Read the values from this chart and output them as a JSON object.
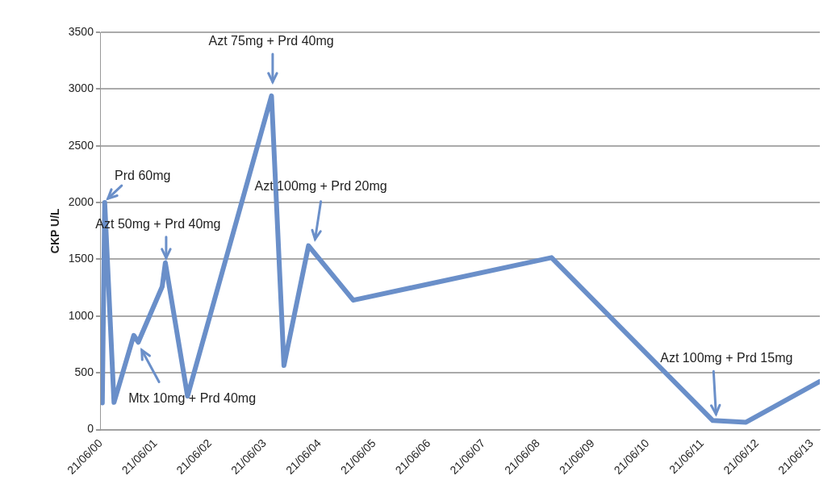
{
  "chart_data": {
    "type": "line",
    "ylabel": "CKP U/L",
    "x": [
      "2000-07-01",
      "2000-07-17",
      "2000-09-17",
      "2001-01-27",
      "2001-02-26",
      "2001-08-05",
      "2001-08-26",
      "2002-01-21",
      "2003-08-05",
      "2003-10-27",
      "2004-04-08",
      "2005-02-01",
      "2008-09-17",
      "2011-08-30",
      "2012-04-08",
      "2013-08-14"
    ],
    "series": [
      {
        "color": "#6a8fc9",
        "values": [
          235,
          2000,
          240,
          830,
          770,
          1260,
          1470,
          295,
          2940,
          565,
          1620,
          1140,
          1515,
          80,
          65,
          425
        ]
      }
    ],
    "xlim": [
      "2000-06-21",
      "2013-08-14"
    ],
    "xticks": [
      {
        "value": "2000-06-21",
        "label": "21/06/00"
      },
      {
        "value": "2001-06-21",
        "label": "21/06/01"
      },
      {
        "value": "2002-06-21",
        "label": "21/06/02"
      },
      {
        "value": "2003-06-21",
        "label": "21/06/03"
      },
      {
        "value": "2004-06-21",
        "label": "21/06/04"
      },
      {
        "value": "2005-06-21",
        "label": "21/06/05"
      },
      {
        "value": "2006-06-21",
        "label": "21/06/06"
      },
      {
        "value": "2007-06-21",
        "label": "21/06/07"
      },
      {
        "value": "2008-06-21",
        "label": "21/06/08"
      },
      {
        "value": "2009-06-21",
        "label": "21/06/09"
      },
      {
        "value": "2010-06-21",
        "label": "21/06/10"
      },
      {
        "value": "2011-06-21",
        "label": "21/06/11"
      },
      {
        "value": "2012-06-21",
        "label": "21/06/12"
      },
      {
        "value": "2013-06-21",
        "label": "21/06/13"
      }
    ],
    "ylim": [
      0,
      3500
    ],
    "yticks": [
      0,
      500,
      1000,
      1500,
      2000,
      2500,
      3000,
      3500
    ],
    "grid": "y",
    "legend": false,
    "marker": "none",
    "line_style": "solid",
    "annotations": [
      {
        "text": "Prd 60mg",
        "x": "2000-07-17",
        "y": 2000
      },
      {
        "text": "Azt 50mg + Prd 40mg",
        "x": "2001-08-26",
        "y": 1470
      },
      "Mtx 10mg + Prd 40mg",
      "Azt 75mg + Prd 40mg",
      "Azt 100mg + Prd 20mg",
      {
        "text": "Azt 100mg + Prd 15mg",
        "x": "2011-08-30",
        "y": 80
      }
    ]
  }
}
